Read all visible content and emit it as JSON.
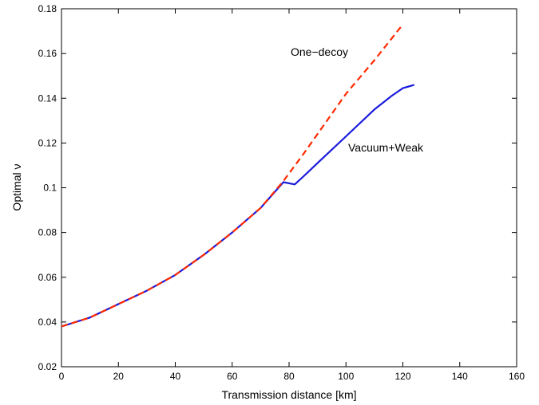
{
  "chart_data": {
    "type": "line",
    "title": "",
    "xlabel": "Transmission distance [km]",
    "ylabel": "Optimal ν",
    "xlim": [
      0,
      160
    ],
    "ylim": [
      0.02,
      0.18
    ],
    "xticks": [
      0,
      20,
      40,
      60,
      80,
      100,
      120,
      140,
      160
    ],
    "yticks": [
      0.02,
      0.04,
      0.06,
      0.08,
      0.1,
      0.12,
      0.14,
      0.16,
      0.18
    ],
    "xtick_labels": [
      "0",
      "20",
      "40",
      "60",
      "80",
      "100",
      "120",
      "140",
      "160"
    ],
    "ytick_labels": [
      "0.02",
      "0.04",
      "0.06",
      "0.08",
      "0.1",
      "0.12",
      "0.14",
      "0.16",
      "0.18"
    ],
    "grid": false,
    "legend": "none",
    "series": [
      {
        "label": "One−decoy",
        "color": "#ff2a00",
        "style": "dashed",
        "x": [
          0,
          10,
          20,
          30,
          40,
          50,
          60,
          70,
          78,
          85,
          90,
          100,
          110,
          120
        ],
        "y": [
          0.038,
          0.042,
          0.048,
          0.054,
          0.061,
          0.07,
          0.08,
          0.091,
          0.103,
          0.115,
          0.124,
          0.142,
          0.157,
          0.173
        ]
      },
      {
        "label": "Vacuum+Weak",
        "color": "#1a1adc",
        "style": "solid",
        "x": [
          0,
          10,
          20,
          30,
          40,
          50,
          60,
          70,
          78,
          82,
          85,
          90,
          100,
          110,
          116,
          120,
          124
        ],
        "y": [
          0.038,
          0.042,
          0.048,
          0.054,
          0.061,
          0.07,
          0.08,
          0.091,
          0.1025,
          0.1015,
          0.105,
          0.111,
          0.123,
          0.135,
          0.141,
          0.1445,
          0.146
        ]
      }
    ]
  }
}
